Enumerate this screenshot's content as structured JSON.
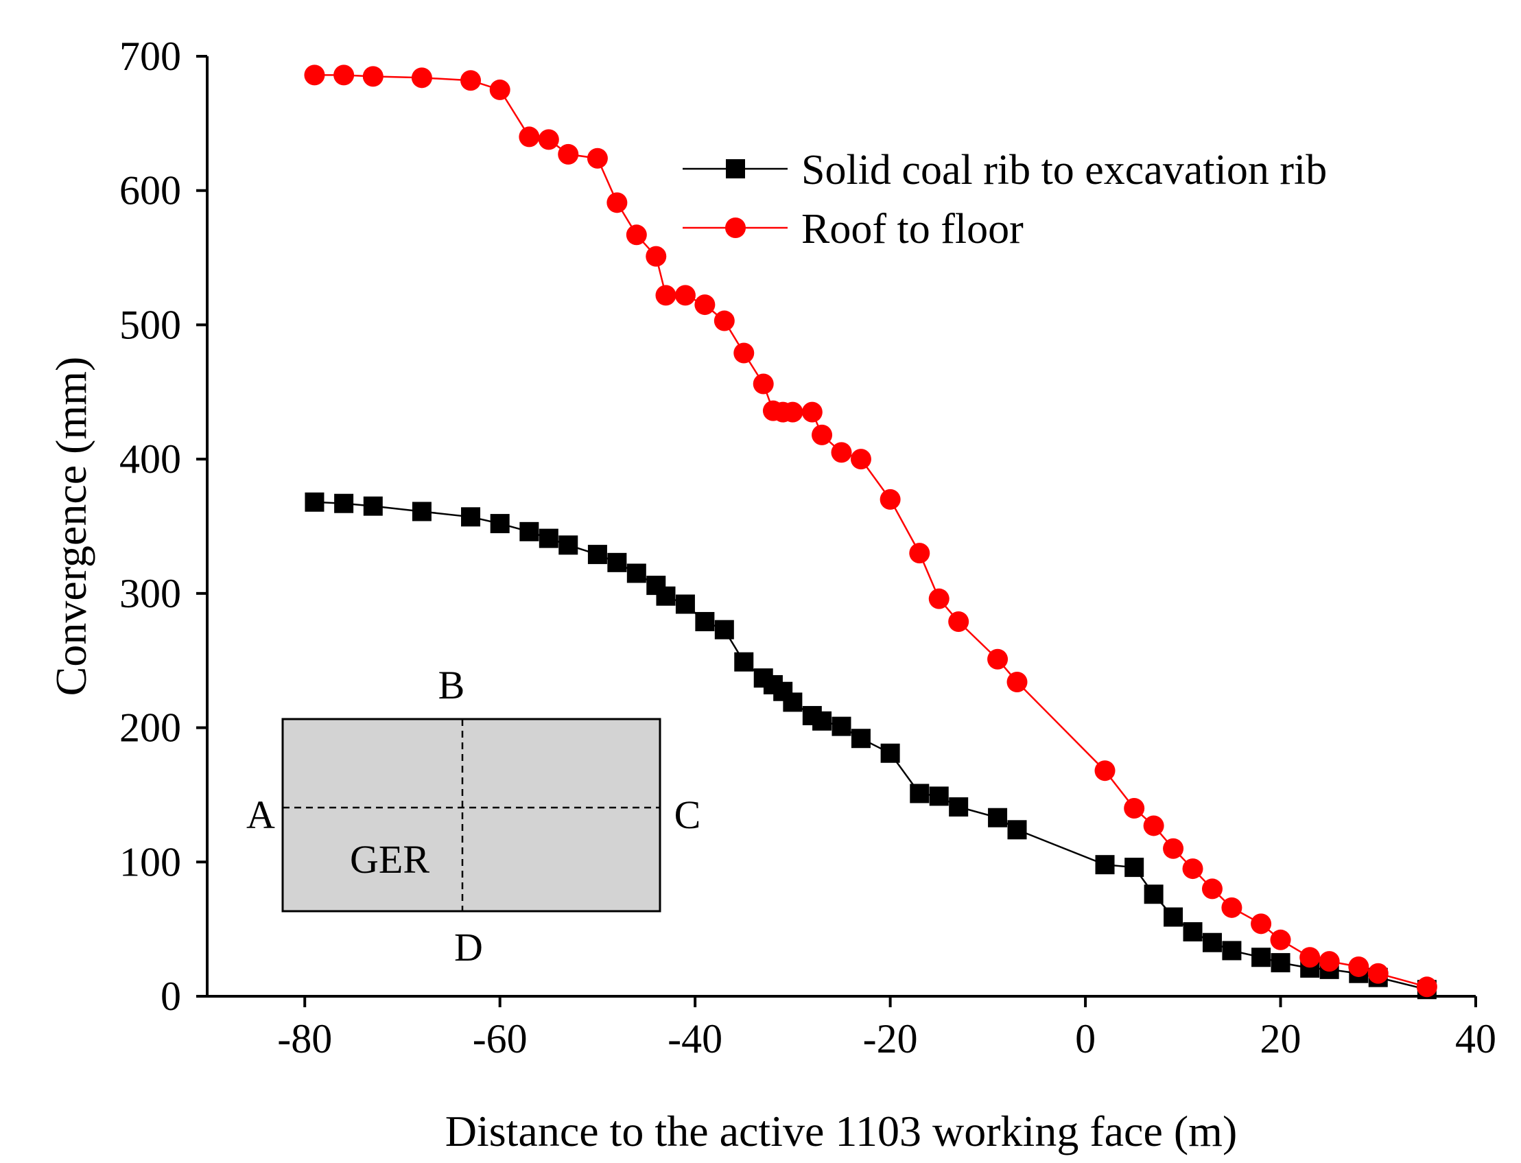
{
  "chart_data": {
    "type": "line",
    "title": "",
    "xlabel": "Distance to the active 1103 working face (m)",
    "ylabel": "Convergence (mm)",
    "xlim": [
      -90,
      40
    ],
    "ylim": [
      0,
      700
    ],
    "xticks": [
      -80,
      -60,
      -40,
      -20,
      0,
      20,
      40
    ],
    "yticks": [
      0,
      100,
      200,
      300,
      400,
      500,
      600,
      700
    ],
    "xtick_labels": [
      "-80",
      "-60",
      "-40",
      "-20",
      "0",
      "20",
      "40"
    ],
    "ytick_labels": [
      "0",
      "100",
      "200",
      "300",
      "400",
      "500",
      "600",
      "700"
    ],
    "grid": false,
    "legend_position": "top-right",
    "series": [
      {
        "name": "Solid coal rib to excavation rib",
        "color": "#000000",
        "marker": "square",
        "x": [
          -79,
          -76,
          -73,
          -68,
          -63,
          -60,
          -57,
          -55,
          -53,
          -50,
          -48,
          -46,
          -44,
          -43,
          -41,
          -39,
          -37,
          -35,
          -33,
          -32,
          -31,
          -30,
          -28,
          -27,
          -25,
          -23,
          -20,
          -17,
          -15,
          -13,
          -9,
          -7,
          2,
          5,
          7,
          9,
          11,
          13,
          15,
          18,
          20,
          23,
          25,
          28,
          30,
          35
        ],
        "y": [
          368,
          367,
          365,
          361,
          357,
          352,
          346,
          341,
          336,
          329,
          323,
          315,
          306,
          298,
          292,
          279,
          273,
          249,
          237,
          232,
          227,
          219,
          209,
          205,
          201,
          192,
          181,
          151,
          149,
          141,
          133,
          124,
          98,
          96,
          76,
          59,
          48,
          40,
          34,
          29,
          25,
          21,
          20,
          17,
          14,
          5
        ]
      },
      {
        "name": "Roof to floor",
        "color": "#ff0000",
        "marker": "circle",
        "x": [
          -79,
          -76,
          -73,
          -68,
          -63,
          -60,
          -57,
          -55,
          -53,
          -50,
          -48,
          -46,
          -44,
          -43,
          -41,
          -39,
          -37,
          -35,
          -33,
          -32,
          -31,
          -30,
          -28,
          -27,
          -25,
          -23,
          -20,
          -17,
          -15,
          -13,
          -9,
          -7,
          2,
          5,
          7,
          9,
          11,
          13,
          15,
          18,
          20,
          23,
          25,
          28,
          30,
          35
        ],
        "y": [
          686,
          686,
          685,
          684,
          682,
          675,
          640,
          638,
          627,
          624,
          591,
          567,
          551,
          522,
          522,
          515,
          503,
          479,
          456,
          436,
          435,
          435,
          435,
          418,
          405,
          400,
          370,
          330,
          296,
          279,
          251,
          234,
          168,
          140,
          127,
          110,
          95,
          80,
          66,
          54,
          42,
          29,
          26,
          22,
          17,
          7
        ]
      }
    ],
    "inset": {
      "region_label": "GER",
      "point_labels": [
        "A",
        "B",
        "C",
        "D"
      ],
      "fill": "#d3d3d3"
    }
  }
}
